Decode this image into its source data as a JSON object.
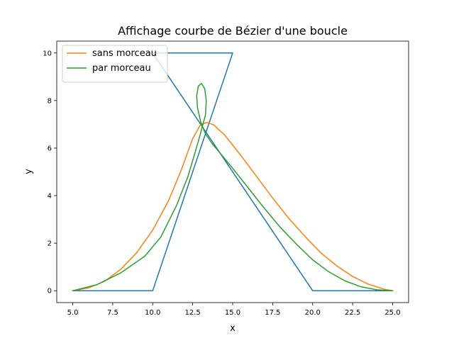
{
  "chart_data": {
    "type": "line",
    "title": "Affichage courbe de Bézier d'une boucle",
    "xlabel": "x",
    "ylabel": "y",
    "xlim": [
      4.0,
      26.0
    ],
    "ylim": [
      -0.5,
      10.5
    ],
    "xticks": [
      5.0,
      7.5,
      10.0,
      12.5,
      15.0,
      17.5,
      20.0,
      22.5,
      25.0
    ],
    "xtick_labels": [
      "5.0",
      "7.5",
      "10.0",
      "12.5",
      "15.0",
      "17.5",
      "20.0",
      "22.5",
      "25.0"
    ],
    "yticks": [
      0,
      2,
      4,
      6,
      8,
      10
    ],
    "ytick_labels": [
      "0",
      "2",
      "4",
      "6",
      "8",
      "10"
    ],
    "grid": false,
    "legend_position": "top-left",
    "series": [
      {
        "name": "",
        "color": "#1f77b4",
        "legend": false,
        "x": [
          5,
          10,
          15,
          10,
          20,
          25
        ],
        "y": [
          0,
          0,
          10,
          10,
          0,
          0
        ]
      },
      {
        "name": "sans morceau",
        "color": "#ff7f0e",
        "legend": true,
        "x": [
          5.0,
          6.0,
          7.0,
          8.0,
          9.0,
          10.0,
          11.0,
          11.8,
          12.5,
          13.0,
          13.4,
          13.8,
          14.5,
          15.5,
          16.5,
          17.5,
          18.5,
          19.5,
          20.5,
          21.5,
          22.5,
          23.5,
          24.5,
          25.0
        ],
        "y": [
          0.0,
          0.12,
          0.4,
          0.9,
          1.6,
          2.55,
          3.8,
          5.1,
          6.4,
          7.0,
          7.08,
          6.98,
          6.55,
          5.7,
          4.8,
          3.9,
          3.05,
          2.3,
          1.6,
          1.05,
          0.6,
          0.27,
          0.06,
          0.0
        ]
      },
      {
        "name": "par morceau",
        "color": "#2ca02c",
        "legend": true,
        "x": [
          5.0,
          6.5,
          8.0,
          9.5,
          10.5,
          11.5,
          12.2,
          12.6,
          12.9,
          13.1,
          13.3,
          13.35,
          13.25,
          13.05,
          12.85,
          12.75,
          12.8,
          13.0,
          13.3,
          13.7,
          14.2,
          15.0,
          16.0,
          17.0,
          18.0,
          19.0,
          20.0,
          21.0,
          22.0,
          23.0,
          24.0,
          25.0
        ],
        "y": [
          0.0,
          0.25,
          0.75,
          1.45,
          2.25,
          3.6,
          4.8,
          5.7,
          6.4,
          6.9,
          7.4,
          8.0,
          8.5,
          8.72,
          8.6,
          8.2,
          7.7,
          7.1,
          6.6,
          6.2,
          5.8,
          5.15,
          4.3,
          3.45,
          2.65,
          1.95,
          1.3,
          0.8,
          0.42,
          0.17,
          0.04,
          0.0
        ]
      }
    ]
  }
}
